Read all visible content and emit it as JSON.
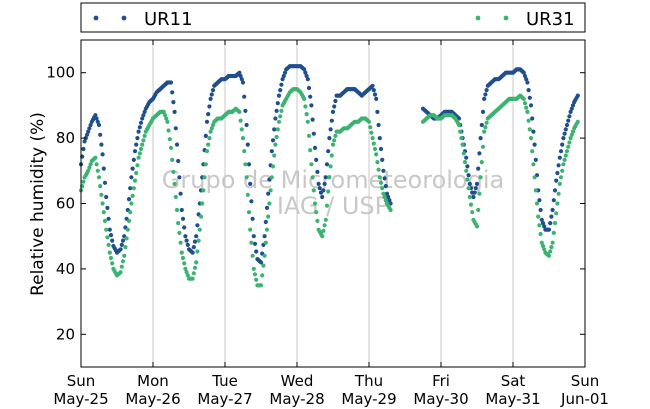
{
  "chart_data": {
    "type": "scatter",
    "ylabel": "Relative humidity (%)",
    "ylim": [
      10,
      110
    ],
    "y_ticks": [
      20,
      40,
      60,
      80,
      100
    ],
    "x_range_days": [
      0,
      7
    ],
    "x_ticks": [
      {
        "day": "Sun",
        "date": "May-25"
      },
      {
        "day": "Mon",
        "date": "May-26"
      },
      {
        "day": "Tue",
        "date": "May-27"
      },
      {
        "day": "Wed",
        "date": "May-28"
      },
      {
        "day": "Thu",
        "date": "May-29"
      },
      {
        "day": "Fri",
        "date": "May-30"
      },
      {
        "day": "Sat",
        "date": "May-31"
      },
      {
        "day": "Sun",
        "date": "Jun-01"
      }
    ],
    "grid": "vertical",
    "legend_position": "top",
    "watermark": [
      "Grupo de Micrometeorologia",
      "IAG / USP"
    ],
    "series": [
      {
        "name": "UR11",
        "color": "#1f4f8c",
        "points": [
          [
            0.0,
            72
          ],
          [
            0.05,
            79
          ],
          [
            0.1,
            82
          ],
          [
            0.15,
            85
          ],
          [
            0.2,
            87
          ],
          [
            0.25,
            84
          ],
          [
            0.3,
            75
          ],
          [
            0.35,
            62
          ],
          [
            0.4,
            52
          ],
          [
            0.45,
            47
          ],
          [
            0.5,
            45
          ],
          [
            0.55,
            46
          ],
          [
            0.6,
            50
          ],
          [
            0.65,
            58
          ],
          [
            0.7,
            68
          ],
          [
            0.75,
            76
          ],
          [
            0.8,
            82
          ],
          [
            0.85,
            86
          ],
          [
            0.9,
            89
          ],
          [
            0.95,
            91
          ],
          [
            1.0,
            92
          ],
          [
            1.05,
            94
          ],
          [
            1.1,
            95
          ],
          [
            1.15,
            96
          ],
          [
            1.2,
            97
          ],
          [
            1.25,
            97
          ],
          [
            1.3,
            88
          ],
          [
            1.35,
            73
          ],
          [
            1.4,
            58
          ],
          [
            1.45,
            50
          ],
          [
            1.5,
            46
          ],
          [
            1.55,
            45
          ],
          [
            1.6,
            50
          ],
          [
            1.65,
            60
          ],
          [
            1.7,
            72
          ],
          [
            1.75,
            85
          ],
          [
            1.8,
            92
          ],
          [
            1.85,
            96
          ],
          [
            1.9,
            97
          ],
          [
            1.95,
            98
          ],
          [
            2.0,
            98
          ],
          [
            2.05,
            99
          ],
          [
            2.1,
            99
          ],
          [
            2.15,
            99
          ],
          [
            2.2,
            100
          ],
          [
            2.25,
            97
          ],
          [
            2.3,
            84
          ],
          [
            2.35,
            66
          ],
          [
            2.4,
            50
          ],
          [
            2.45,
            43
          ],
          [
            2.5,
            42
          ],
          [
            2.55,
            50
          ],
          [
            2.6,
            63
          ],
          [
            2.65,
            76
          ],
          [
            2.7,
            86
          ],
          [
            2.75,
            93
          ],
          [
            2.8,
            98
          ],
          [
            2.85,
            101
          ],
          [
            2.9,
            102
          ],
          [
            2.95,
            102
          ],
          [
            3.0,
            102
          ],
          [
            3.05,
            102
          ],
          [
            3.1,
            101
          ],
          [
            3.15,
            98
          ],
          [
            3.2,
            90
          ],
          [
            3.25,
            77
          ],
          [
            3.3,
            66
          ],
          [
            3.35,
            62
          ],
          [
            3.4,
            68
          ],
          [
            3.45,
            80
          ],
          [
            3.5,
            88
          ],
          [
            3.55,
            93
          ],
          [
            3.6,
            93
          ],
          [
            3.65,
            94
          ],
          [
            3.7,
            95
          ],
          [
            3.75,
            95
          ],
          [
            3.8,
            95
          ],
          [
            3.85,
            94
          ],
          [
            3.9,
            93
          ],
          [
            3.95,
            94
          ],
          [
            4.0,
            95
          ],
          [
            4.05,
            96
          ],
          [
            4.1,
            92
          ],
          [
            4.15,
            80
          ],
          [
            4.2,
            70
          ],
          [
            4.25,
            63
          ],
          [
            4.3,
            60
          ],
          [
            4.75,
            89
          ],
          [
            4.8,
            88
          ],
          [
            4.85,
            87
          ],
          [
            4.9,
            86
          ],
          [
            4.95,
            86
          ],
          [
            5.0,
            87
          ],
          [
            5.05,
            88
          ],
          [
            5.1,
            88
          ],
          [
            5.15,
            88
          ],
          [
            5.2,
            87
          ],
          [
            5.25,
            86
          ],
          [
            5.3,
            80
          ],
          [
            5.35,
            74
          ],
          [
            5.4,
            66
          ],
          [
            5.45,
            62
          ],
          [
            5.5,
            66
          ],
          [
            5.55,
            80
          ],
          [
            5.6,
            92
          ],
          [
            5.65,
            96
          ],
          [
            5.7,
            97
          ],
          [
            5.75,
            98
          ],
          [
            5.8,
            98
          ],
          [
            5.85,
            99
          ],
          [
            5.9,
            100
          ],
          [
            5.95,
            100
          ],
          [
            6.0,
            100
          ],
          [
            6.05,
            101
          ],
          [
            6.1,
            101
          ],
          [
            6.15,
            100
          ],
          [
            6.2,
            97
          ],
          [
            6.25,
            90
          ],
          [
            6.3,
            78
          ],
          [
            6.35,
            64
          ],
          [
            6.4,
            55
          ],
          [
            6.45,
            52
          ],
          [
            6.5,
            52
          ],
          [
            6.55,
            58
          ],
          [
            6.6,
            67
          ],
          [
            6.65,
            74
          ],
          [
            6.7,
            80
          ],
          [
            6.75,
            84
          ],
          [
            6.8,
            88
          ],
          [
            6.85,
            91
          ],
          [
            6.9,
            93
          ]
        ]
      },
      {
        "name": "UR31",
        "color": "#3cb371",
        "points": [
          [
            0.0,
            64
          ],
          [
            0.05,
            68
          ],
          [
            0.1,
            70
          ],
          [
            0.15,
            73
          ],
          [
            0.2,
            74
          ],
          [
            0.25,
            68
          ],
          [
            0.3,
            60
          ],
          [
            0.35,
            52
          ],
          [
            0.4,
            45
          ],
          [
            0.45,
            40
          ],
          [
            0.5,
            38
          ],
          [
            0.55,
            39
          ],
          [
            0.6,
            44
          ],
          [
            0.65,
            52
          ],
          [
            0.7,
            60
          ],
          [
            0.75,
            67
          ],
          [
            0.8,
            74
          ],
          [
            0.85,
            78
          ],
          [
            0.9,
            82
          ],
          [
            0.95,
            84
          ],
          [
            1.0,
            86
          ],
          [
            1.05,
            87
          ],
          [
            1.1,
            88
          ],
          [
            1.15,
            88
          ],
          [
            1.2,
            85
          ],
          [
            1.25,
            77
          ],
          [
            1.3,
            66
          ],
          [
            1.35,
            54
          ],
          [
            1.4,
            45
          ],
          [
            1.45,
            40
          ],
          [
            1.5,
            37
          ],
          [
            1.55,
            37
          ],
          [
            1.6,
            42
          ],
          [
            1.65,
            52
          ],
          [
            1.7,
            64
          ],
          [
            1.75,
            76
          ],
          [
            1.8,
            82
          ],
          [
            1.85,
            85
          ],
          [
            1.9,
            86
          ],
          [
            1.95,
            86
          ],
          [
            2.0,
            87
          ],
          [
            2.05,
            88
          ],
          [
            2.1,
            88
          ],
          [
            2.15,
            89
          ],
          [
            2.2,
            88
          ],
          [
            2.25,
            80
          ],
          [
            2.3,
            68
          ],
          [
            2.35,
            52
          ],
          [
            2.4,
            40
          ],
          [
            2.45,
            35
          ],
          [
            2.5,
            35
          ],
          [
            2.55,
            44
          ],
          [
            2.6,
            56
          ],
          [
            2.65,
            68
          ],
          [
            2.7,
            78
          ],
          [
            2.75,
            85
          ],
          [
            2.8,
            90
          ],
          [
            2.85,
            92
          ],
          [
            2.9,
            94
          ],
          [
            2.95,
            95
          ],
          [
            3.0,
            95
          ],
          [
            3.05,
            94
          ],
          [
            3.1,
            92
          ],
          [
            3.15,
            85
          ],
          [
            3.2,
            72
          ],
          [
            3.25,
            60
          ],
          [
            3.3,
            52
          ],
          [
            3.35,
            50
          ],
          [
            3.4,
            55
          ],
          [
            3.45,
            68
          ],
          [
            3.5,
            78
          ],
          [
            3.55,
            82
          ],
          [
            3.6,
            82
          ],
          [
            3.65,
            83
          ],
          [
            3.7,
            83
          ],
          [
            3.75,
            84
          ],
          [
            3.8,
            85
          ],
          [
            3.85,
            85
          ],
          [
            3.9,
            86
          ],
          [
            3.95,
            86
          ],
          [
            4.0,
            85
          ],
          [
            4.05,
            80
          ],
          [
            4.1,
            75
          ],
          [
            4.15,
            68
          ],
          [
            4.2,
            63
          ],
          [
            4.25,
            60
          ],
          [
            4.3,
            58
          ],
          [
            4.75,
            85
          ],
          [
            4.8,
            86
          ],
          [
            4.85,
            87
          ],
          [
            4.9,
            87
          ],
          [
            4.95,
            86
          ],
          [
            5.0,
            86
          ],
          [
            5.05,
            87
          ],
          [
            5.1,
            87
          ],
          [
            5.15,
            87
          ],
          [
            5.2,
            86
          ],
          [
            5.25,
            84
          ],
          [
            5.3,
            78
          ],
          [
            5.35,
            70
          ],
          [
            5.4,
            62
          ],
          [
            5.45,
            55
          ],
          [
            5.5,
            53
          ],
          [
            5.55,
            68
          ],
          [
            5.6,
            82
          ],
          [
            5.65,
            86
          ],
          [
            5.7,
            87
          ],
          [
            5.75,
            88
          ],
          [
            5.8,
            89
          ],
          [
            5.85,
            90
          ],
          [
            5.9,
            91
          ],
          [
            5.95,
            92
          ],
          [
            6.0,
            92
          ],
          [
            6.05,
            92
          ],
          [
            6.1,
            93
          ],
          [
            6.15,
            92
          ],
          [
            6.2,
            88
          ],
          [
            6.25,
            80
          ],
          [
            6.3,
            68
          ],
          [
            6.35,
            56
          ],
          [
            6.4,
            48
          ],
          [
            6.45,
            45
          ],
          [
            6.5,
            44
          ],
          [
            6.55,
            48
          ],
          [
            6.6,
            57
          ],
          [
            6.65,
            66
          ],
          [
            6.7,
            72
          ],
          [
            6.75,
            76
          ],
          [
            6.8,
            80
          ],
          [
            6.85,
            83
          ],
          [
            6.9,
            85
          ]
        ]
      }
    ]
  }
}
